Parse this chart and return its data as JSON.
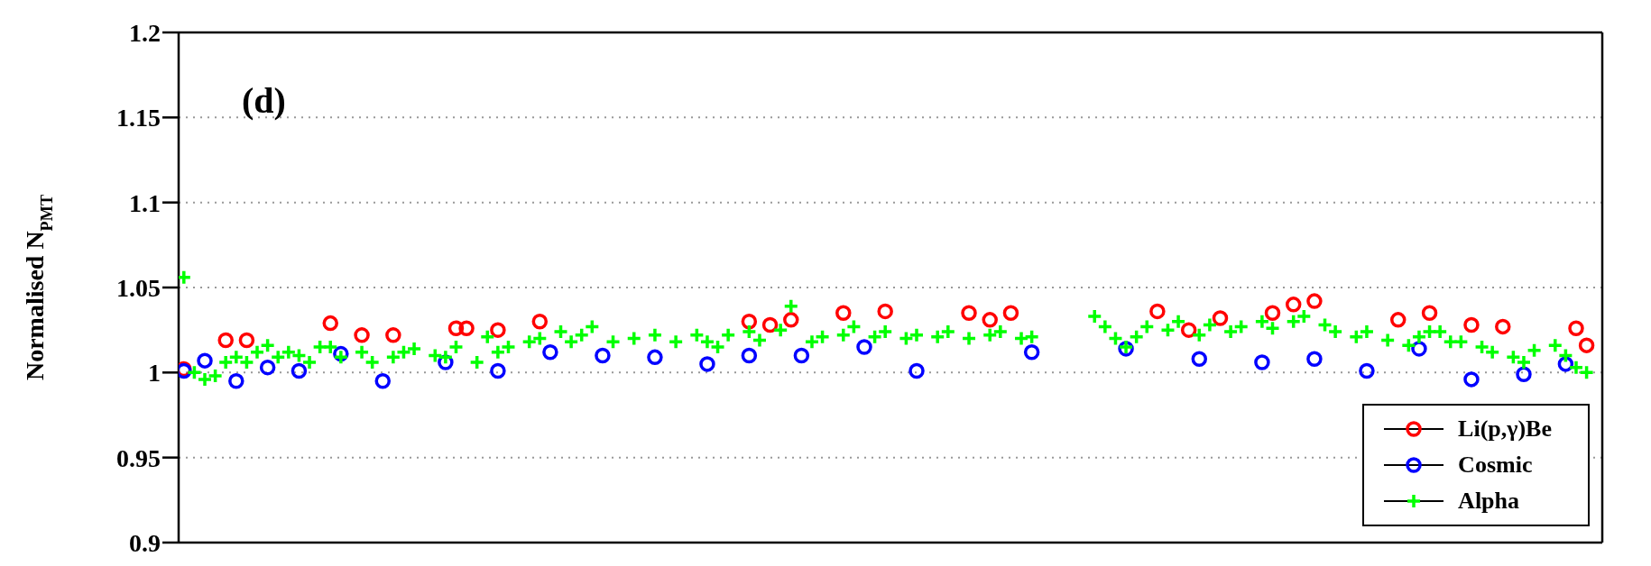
{
  "chart_data": {
    "type": "scatter",
    "ylabel": "Normalised N$_{PMT}$",
    "annotations": [
      "(d)"
    ],
    "categories": [
      null,
      null,
      null,
      null,
      null,
      null,
      null,
      null,
      null,
      null,
      null,
      null,
      null,
      null,
      null,
      null,
      null,
      null,
      null,
      null,
      null,
      null,
      null,
      null,
      null,
      null,
      null,
      null,
      null,
      null,
      null,
      null,
      null,
      null,
      null,
      null,
      null,
      null,
      null,
      null,
      null,
      null,
      null,
      null,
      null,
      null,
      null,
      null,
      null,
      null,
      null,
      null,
      null,
      null,
      null,
      null,
      null,
      null,
      null,
      null,
      null,
      null,
      null,
      null,
      null,
      null,
      null,
      null,
      null,
      null,
      null,
      null,
      null,
      null,
      null,
      null,
      null,
      null,
      null,
      null,
      null,
      null,
      null,
      null,
      null,
      null,
      null,
      null,
      null,
      null,
      null,
      null,
      null,
      null,
      null,
      null,
      null,
      null,
      null,
      null,
      null,
      null,
      null,
      null,
      null,
      null,
      null,
      null,
      null,
      null,
      null,
      null,
      null,
      null,
      null,
      null,
      null,
      null,
      null,
      null,
      null,
      null,
      null,
      null,
      null,
      null,
      null,
      null,
      null,
      null,
      null,
      null,
      null,
      null,
      null,
      null
    ],
    "ylim": [
      0.9,
      1.2
    ],
    "yticks": [
      0.9,
      0.95,
      1,
      1.05,
      1.1,
      1.15,
      1.2
    ],
    "tick_labels": "y",
    "grid": "y",
    "legend": "bottom right",
    "series": [
      {
        "name": "Li(p,γ)Be",
        "color": "#ff0000",
        "marker": "circle",
        "values": [
          1.002,
          null,
          null,
          null,
          1.019,
          null,
          1.019,
          null,
          null,
          null,
          null,
          null,
          null,
          null,
          1.029,
          null,
          null,
          1.022,
          null,
          null,
          1.022,
          null,
          null,
          null,
          null,
          null,
          1.026,
          1.026,
          null,
          null,
          1.025,
          null,
          null,
          null,
          1.03,
          null,
          null,
          null,
          null,
          null,
          null,
          null,
          null,
          null,
          null,
          null,
          null,
          null,
          null,
          null,
          null,
          null,
          null,
          null,
          1.03,
          null,
          1.028,
          null,
          1.031,
          null,
          null,
          null,
          null,
          1.035,
          null,
          null,
          null,
          1.036,
          null,
          null,
          null,
          null,
          null,
          null,
          null,
          1.035,
          null,
          1.031,
          null,
          1.035,
          null,
          null,
          null,
          null,
          null,
          null,
          null,
          null,
          null,
          null,
          null,
          null,
          null,
          1.036,
          null,
          null,
          1.025,
          null,
          null,
          1.032,
          null,
          null,
          null,
          null,
          1.035,
          null,
          1.04,
          null,
          1.042,
          null,
          null,
          null,
          null,
          null,
          null,
          null,
          1.031,
          null,
          null,
          1.035,
          null,
          null,
          null,
          1.028,
          null,
          null,
          1.027,
          null,
          null,
          null,
          null,
          null,
          null,
          1.026,
          1.016,
          null
        ]
      },
      {
        "name": "Cosmic",
        "color": "#0000ff",
        "marker": "circle",
        "values": [
          1.001,
          null,
          1.007,
          null,
          null,
          0.995,
          null,
          null,
          1.003,
          null,
          null,
          1.001,
          null,
          null,
          null,
          1.011,
          null,
          null,
          null,
          0.995,
          null,
          null,
          null,
          null,
          null,
          1.006,
          null,
          null,
          null,
          null,
          1.001,
          null,
          null,
          null,
          null,
          1.012,
          null,
          null,
          null,
          null,
          1.01,
          null,
          null,
          null,
          null,
          1.009,
          null,
          null,
          null,
          null,
          1.005,
          null,
          null,
          null,
          1.01,
          null,
          null,
          null,
          null,
          1.01,
          null,
          null,
          null,
          null,
          null,
          1.015,
          null,
          null,
          null,
          null,
          1.001,
          null,
          null,
          null,
          null,
          null,
          null,
          null,
          null,
          null,
          null,
          1.012,
          null,
          null,
          null,
          null,
          null,
          null,
          null,
          null,
          1.014,
          null,
          null,
          null,
          null,
          null,
          null,
          1.008,
          null,
          null,
          null,
          null,
          null,
          1.006,
          null,
          null,
          null,
          null,
          1.008,
          null,
          null,
          null,
          null,
          1.001,
          null,
          null,
          null,
          null,
          1.014,
          null,
          null,
          null,
          null,
          0.996,
          null,
          null,
          null,
          null,
          0.999,
          null,
          null,
          null,
          1.005,
          null,
          null,
          null
        ]
      },
      {
        "name": "Alpha",
        "color": "#00ff00",
        "marker": "cross",
        "values": [
          1.056,
          1.0,
          0.996,
          0.998,
          1.006,
          1.009,
          1.006,
          1.012,
          1.016,
          1.009,
          1.012,
          1.01,
          1.006,
          1.015,
          1.015,
          1.009,
          null,
          1.012,
          1.006,
          null,
          1.009,
          1.012,
          1.014,
          null,
          1.01,
          1.009,
          1.015,
          null,
          1.006,
          1.021,
          1.012,
          1.015,
          null,
          1.018,
          1.02,
          null,
          1.024,
          1.018,
          1.022,
          1.027,
          null,
          1.018,
          null,
          1.02,
          null,
          1.022,
          null,
          1.018,
          null,
          1.022,
          1.018,
          1.015,
          1.022,
          null,
          1.024,
          1.019,
          null,
          1.025,
          1.039,
          null,
          1.018,
          1.021,
          null,
          1.022,
          1.027,
          null,
          1.021,
          1.024,
          null,
          1.02,
          1.022,
          null,
          1.021,
          1.024,
          null,
          1.02,
          null,
          1.022,
          1.024,
          null,
          1.02,
          1.021,
          null,
          null,
          null,
          null,
          null,
          1.033,
          1.027,
          1.02,
          1.015,
          1.021,
          1.027,
          null,
          1.025,
          1.03,
          null,
          1.022,
          1.028,
          null,
          1.024,
          1.027,
          null,
          1.03,
          1.026,
          null,
          1.03,
          1.033,
          null,
          1.028,
          1.024,
          null,
          1.021,
          1.024,
          null,
          1.019,
          null,
          1.016,
          1.021,
          1.024,
          1.024,
          1.018,
          1.018,
          null,
          1.015,
          1.012,
          null,
          1.009,
          1.006,
          1.013,
          null,
          1.016,
          1.01,
          1.003,
          1.0,
          null
        ]
      }
    ]
  }
}
